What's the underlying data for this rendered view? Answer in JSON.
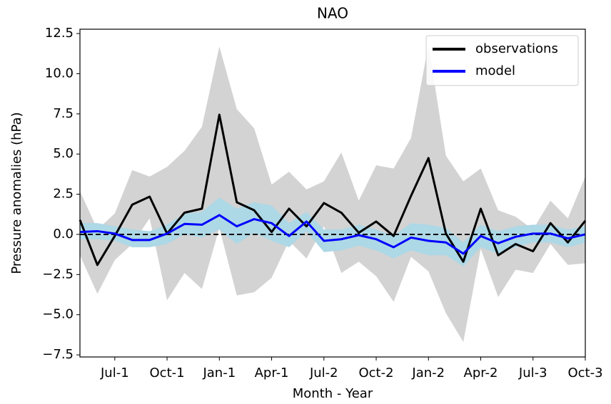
{
  "chart_data": {
    "type": "line",
    "title": "NAO",
    "x_label": "Month - Year",
    "y_label": "Pressure anomalies (hPa)",
    "categories": [
      null,
      null,
      "Jul-1",
      null,
      null,
      "Oct-1",
      null,
      null,
      "Jan-1",
      null,
      null,
      "Apr-1",
      null,
      null,
      "Jul-2",
      null,
      null,
      "Oct-2",
      null,
      null,
      "Jan-2",
      null,
      null,
      "Apr-2",
      null,
      null,
      "Jul-3",
      null,
      null,
      "Oct-3"
    ],
    "series": [
      {
        "name": "observations",
        "color": "#000000",
        "values": [
          0.9,
          -1.9,
          -0.1,
          1.85,
          2.35,
          0.05,
          1.35,
          1.6,
          7.45,
          2.0,
          1.5,
          0.15,
          1.6,
          0.5,
          1.95,
          1.35,
          0.1,
          0.8,
          -0.1,
          2.4,
          4.75,
          0.05,
          -1.7,
          1.6,
          -1.3,
          -0.6,
          -1.05,
          0.7,
          -0.5,
          0.85
        ]
      },
      {
        "name": "model",
        "color": "#0000ff",
        "values": [
          0.15,
          0.2,
          0.05,
          -0.35,
          -0.35,
          0.05,
          0.65,
          0.6,
          1.2,
          0.5,
          0.95,
          0.7,
          -0.1,
          0.8,
          -0.4,
          -0.3,
          -0.05,
          -0.3,
          -0.8,
          -0.2,
          -0.4,
          -0.5,
          -1.2,
          -0.1,
          -0.55,
          -0.15,
          0.05,
          0.05,
          -0.25,
          0.0
        ]
      }
    ],
    "bands": [
      {
        "color": "#d3d3d3",
        "upper": [
          2.7,
          0.3,
          1.3,
          4.0,
          3.6,
          4.2,
          5.2,
          6.7,
          11.7,
          7.8,
          6.6,
          3.1,
          3.9,
          2.8,
          3.3,
          5.1,
          2.1,
          4.3,
          4.1,
          6.0,
          11.8,
          4.9,
          3.3,
          4.1,
          1.5,
          1.1,
          0.3,
          2.1,
          1.0,
          3.6
        ],
        "lower": [
          -1.3,
          -3.7,
          -1.6,
          -0.6,
          1.0,
          -4.1,
          -2.4,
          -3.4,
          0.4,
          -3.8,
          -3.6,
          -2.7,
          -0.4,
          -1.5,
          0.5,
          -2.4,
          -1.7,
          -2.6,
          -4.2,
          -1.4,
          -2.3,
          -4.9,
          -6.7,
          -0.9,
          -3.9,
          -2.2,
          -2.4,
          -0.6,
          -1.9,
          -1.8
        ]
      },
      {
        "color": "#add8e6",
        "upper": [
          0.7,
          0.7,
          0.5,
          0.3,
          0.2,
          0.6,
          1.3,
          1.4,
          2.3,
          1.6,
          2.0,
          1.8,
          0.7,
          1.4,
          0.3,
          0.3,
          0.6,
          0.3,
          -0.1,
          0.7,
          0.6,
          0.4,
          -0.5,
          0.6,
          0.2,
          0.5,
          0.6,
          0.6,
          0.3,
          0.5
        ],
        "lower": [
          -0.3,
          -0.3,
          -0.4,
          -0.8,
          -0.8,
          -0.6,
          0.0,
          -0.2,
          0.3,
          -0.6,
          0.1,
          -0.4,
          -0.8,
          0.2,
          -1.1,
          -1.0,
          -0.7,
          -1.0,
          -1.5,
          -1.0,
          -1.3,
          -1.3,
          -2.0,
          -0.8,
          -1.2,
          -0.8,
          -0.5,
          -0.5,
          -0.8,
          -0.5
        ]
      }
    ],
    "hline": 0,
    "ylim": [
      -7.63,
      12.77
    ],
    "yticks": [
      {
        "value": -7.5,
        "label": "−7.5"
      },
      {
        "value": -5,
        "label": "−5.0"
      },
      {
        "value": -2.5,
        "label": "−2.5"
      },
      {
        "value": 0,
        "label": "0.0"
      },
      2.5,
      {
        "value": 5,
        "label": "5.0"
      },
      7.5,
      {
        "value": 10,
        "label": "10.0"
      },
      12.5
    ],
    "legend": "upper right",
    "grid": false
  }
}
